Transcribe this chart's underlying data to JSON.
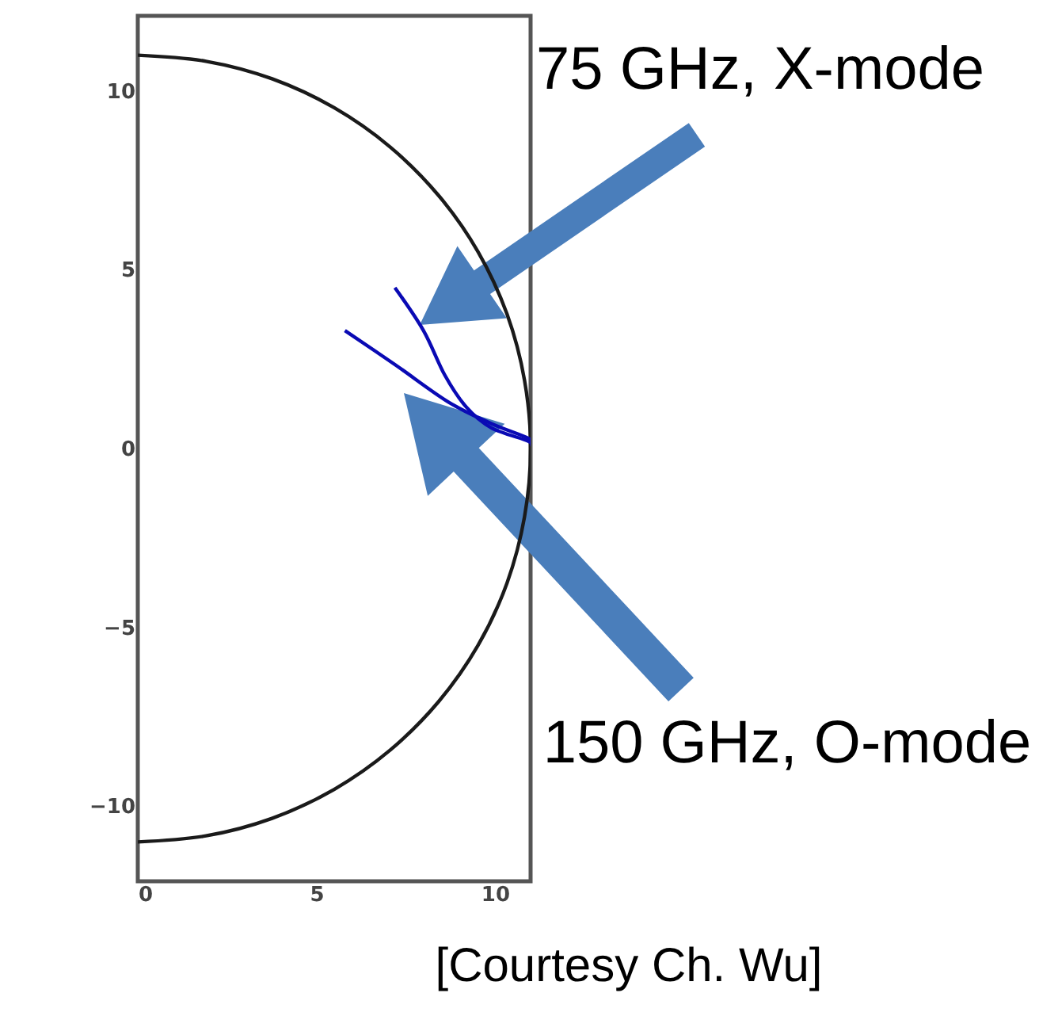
{
  "chart_data": {
    "type": "line",
    "xlim": [
      0,
      11
    ],
    "ylim": [
      -12.1,
      12.1
    ],
    "xticks": [
      0,
      5,
      10
    ],
    "yticks": [
      -10,
      -5,
      0,
      5,
      10
    ],
    "grid": false,
    "marker": "none",
    "line_style": "solid",
    "series": [
      {
        "color": "#1a1a1a",
        "x": [
          0,
          1.91,
          3.76,
          5.5,
          7.07,
          8.43,
          9.53,
          10.34,
          10.83,
          11,
          10.83,
          10.34,
          9.53,
          8.43,
          7.07,
          5.5,
          3.76,
          1.91,
          0
        ],
        "values": [
          11,
          10.83,
          10.34,
          9.53,
          8.43,
          7.07,
          5.5,
          3.76,
          1.91,
          0,
          -1.91,
          -3.76,
          -5.5,
          -7.07,
          -8.43,
          -9.53,
          -10.34,
          -10.83,
          -11
        ]
      },
      {
        "color": "#0a0ab4",
        "x": [
          7.2,
          8.0,
          8.6,
          9.2,
          9.9,
          10.95,
          11.0
        ],
        "values": [
          4.5,
          3.3,
          2.05,
          1.16,
          0.58,
          0.2,
          0.05
        ]
      },
      {
        "color": "#0a0ab4",
        "x": [
          5.8,
          7.2,
          8.7,
          9.9,
          10.95,
          11.0
        ],
        "values": [
          3.3,
          2.35,
          1.3,
          0.7,
          0.28,
          0.1
        ]
      }
    ],
    "annotations": [
      "75 GHz, X-mode",
      "150 GHz, O-mode",
      "[Courtesy Ch. Wu]"
    ]
  }
}
